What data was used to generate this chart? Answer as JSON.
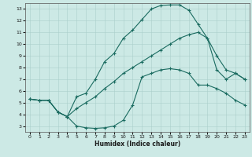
{
  "xlabel": "Humidex (Indice chaleur)",
  "bg_color": "#cce9e5",
  "grid_color": "#aacfcb",
  "line_color": "#1a6b60",
  "xlim": [
    -0.5,
    23.5
  ],
  "ylim": [
    2.5,
    13.5
  ],
  "xticks": [
    0,
    1,
    2,
    3,
    4,
    5,
    6,
    7,
    8,
    9,
    10,
    11,
    12,
    13,
    14,
    15,
    16,
    17,
    18,
    19,
    20,
    21,
    22,
    23
  ],
  "yticks": [
    3,
    4,
    5,
    6,
    7,
    8,
    9,
    10,
    11,
    12,
    13
  ],
  "line1_x": [
    0,
    1,
    2,
    3,
    4,
    5,
    6,
    7,
    8,
    9,
    10,
    11,
    12,
    13,
    14,
    15,
    16,
    17,
    18,
    19,
    20,
    21,
    22,
    23
  ],
  "line1_y": [
    5.3,
    5.2,
    5.2,
    4.2,
    3.8,
    3.0,
    2.85,
    2.8,
    2.85,
    3.0,
    3.5,
    4.8,
    7.2,
    7.5,
    7.8,
    7.9,
    7.8,
    7.5,
    6.5,
    6.5,
    6.2,
    5.8,
    5.2,
    4.8
  ],
  "line2_x": [
    0,
    1,
    2,
    3,
    4,
    5,
    6,
    7,
    8,
    9,
    10,
    11,
    12,
    13,
    14,
    15,
    16,
    17,
    18,
    19,
    20,
    21,
    22,
    23
  ],
  "line2_y": [
    5.3,
    5.2,
    5.2,
    4.2,
    3.8,
    5.5,
    5.8,
    7.0,
    8.5,
    9.2,
    10.5,
    11.2,
    12.1,
    13.0,
    13.3,
    13.35,
    13.35,
    12.9,
    11.7,
    10.5,
    9.0,
    7.8,
    7.5,
    7.0
  ],
  "line3_x": [
    0,
    1,
    2,
    3,
    4,
    5,
    6,
    7,
    8,
    9,
    10,
    11,
    12,
    13,
    14,
    15,
    16,
    17,
    18,
    19,
    20,
    21,
    22,
    23
  ],
  "line3_y": [
    5.3,
    5.2,
    5.2,
    4.2,
    3.8,
    4.5,
    5.0,
    5.5,
    6.2,
    6.8,
    7.5,
    8.0,
    8.5,
    9.0,
    9.5,
    10.0,
    10.5,
    10.8,
    11.0,
    10.5,
    7.8,
    7.0,
    7.5,
    7.0
  ]
}
